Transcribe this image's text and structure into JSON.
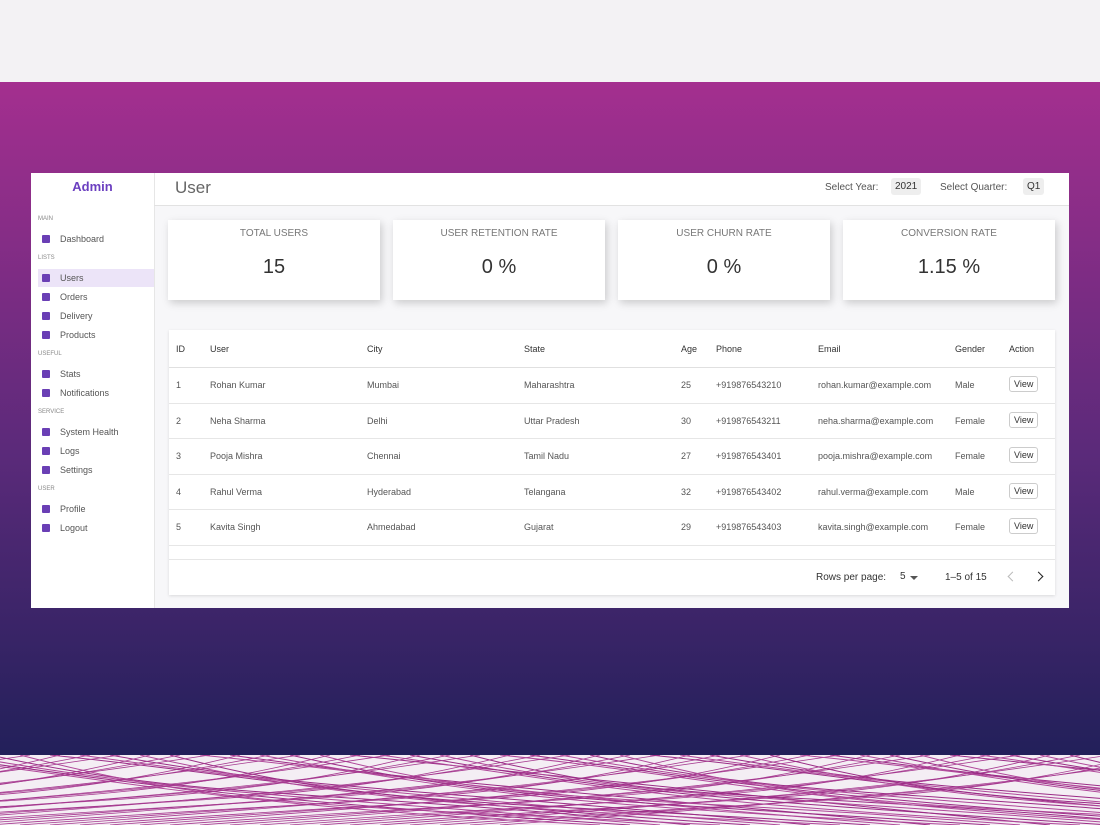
{
  "sidebar": {
    "brand": "Admin",
    "sections": [
      {
        "title": "MAIN",
        "items": [
          "Dashboard"
        ]
      },
      {
        "title": "LISTS",
        "items": [
          "Users",
          "Orders",
          "Delivery",
          "Products"
        ]
      },
      {
        "title": "USEFUL",
        "items": [
          "Stats",
          "Notifications"
        ]
      },
      {
        "title": "SERVICE",
        "items": [
          "System Health",
          "Logs",
          "Settings"
        ]
      },
      {
        "title": "USER",
        "items": [
          "Profile",
          "Logout"
        ]
      }
    ]
  },
  "header": {
    "title": "User",
    "year_label": "Select Year:",
    "year": "2021",
    "quarter_label": "Select Quarter:",
    "quarter": "Q1"
  },
  "stats": [
    {
      "label": "TOTAL USERS",
      "value": "15"
    },
    {
      "label": "USER RETENTION RATE",
      "value": "0 %"
    },
    {
      "label": "USER CHURN RATE",
      "value": "0 %"
    },
    {
      "label": "CONVERSION RATE",
      "value": "1.15 %"
    }
  ],
  "table": {
    "columns": [
      "ID",
      "User",
      "City",
      "State",
      "Age",
      "Phone",
      "Email",
      "Gender",
      "Action"
    ],
    "rows": [
      [
        1,
        "Rohan Kumar",
        "Mumbai",
        "Maharashtra",
        25,
        "+919876543210",
        "rohan.kumar@example.com",
        "Male",
        "View"
      ],
      [
        2,
        "Neha Sharma",
        "Delhi",
        "Uttar Pradesh",
        30,
        "+919876543211",
        "neha.sharma@example.com",
        "Female",
        "View"
      ],
      [
        3,
        "Pooja Mishra",
        "Chennai",
        "Tamil Nadu",
        27,
        "+919876543401",
        "pooja.mishra@example.com",
        "Female",
        "View"
      ],
      [
        4,
        "Rahul Verma",
        "Hyderabad",
        "Telangana",
        32,
        "+919876543402",
        "rahul.verma@example.com",
        "Male",
        "View"
      ],
      [
        5,
        "Kavita Singh",
        "Ahmedabad",
        "Gujarat",
        29,
        "+919876543403",
        "kavita.singh@example.com",
        "Female",
        "View"
      ]
    ]
  },
  "pagination": {
    "rows_label": "Rows per page:",
    "rows": "5",
    "range": "1–5 of 15"
  }
}
